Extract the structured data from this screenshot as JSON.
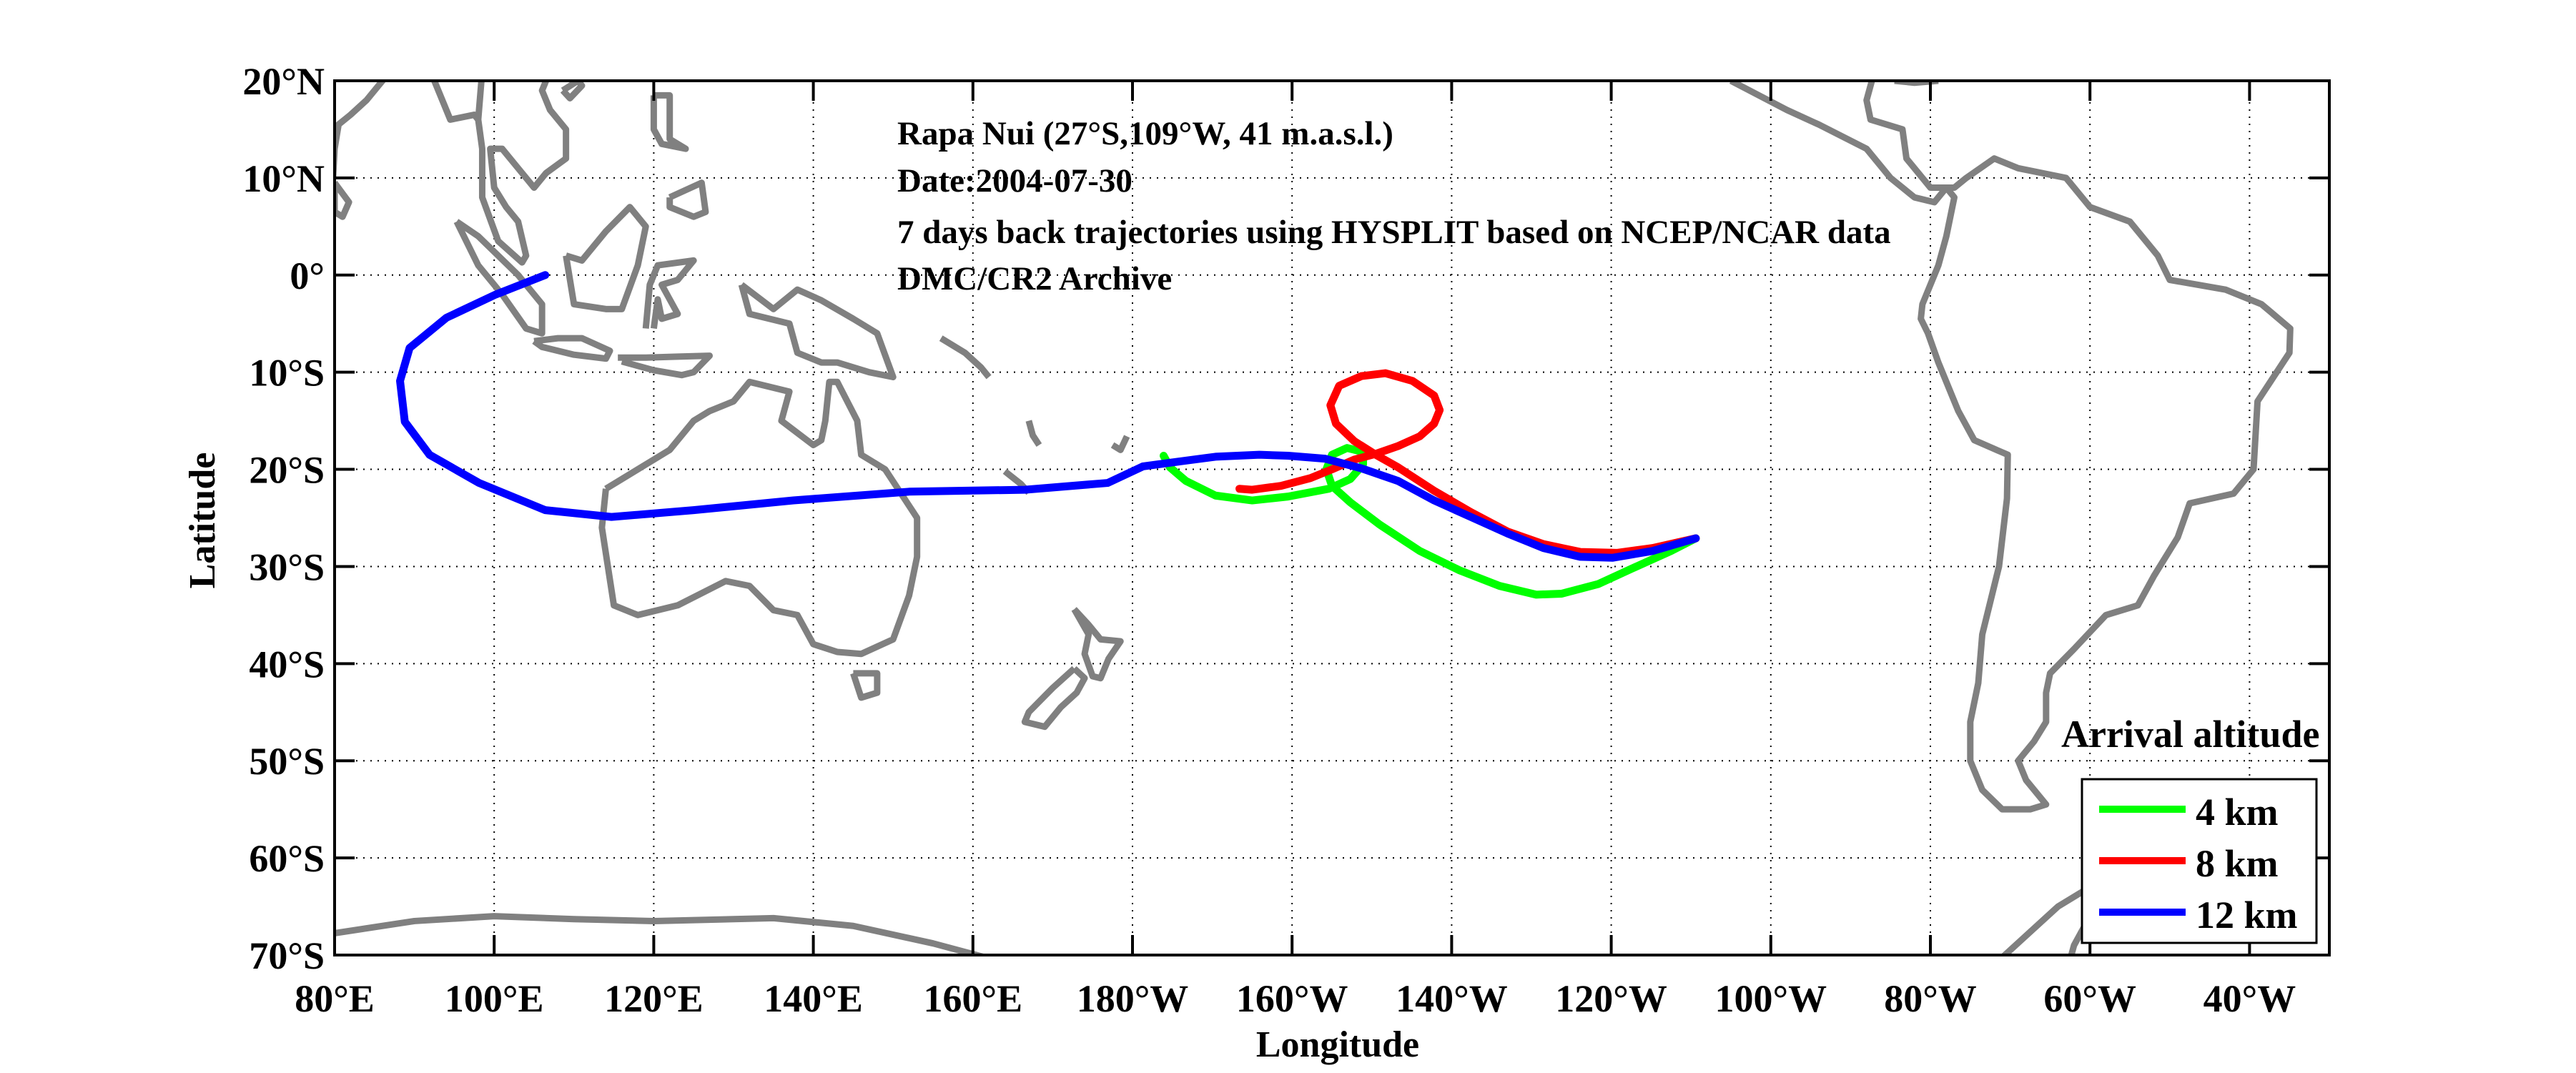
{
  "chart_data": {
    "type": "line",
    "subtype": "trajectory-map",
    "title_lines": [
      "Rapa Nui (27°S,109°W, 41 m.a.s.l.)",
      "Date:2004-07-30",
      "7 days back trajectories using HYSPLIT based on NCEP/NCAR data",
      "DMC/CR2 Archive"
    ],
    "xlabel": "Longitude",
    "ylabel": "Latitude",
    "xlim": [
      80,
      330
    ],
    "ylim": [
      -70,
      20
    ],
    "grid": true,
    "x_ticks": [
      80,
      100,
      120,
      140,
      160,
      180,
      200,
      220,
      240,
      260,
      280,
      300,
      320
    ],
    "x_tick_labels": [
      "80°E",
      "100°E",
      "120°E",
      "140°E",
      "160°E",
      "180°W",
      "160°W",
      "140°W",
      "120°W",
      "100°W",
      "80°W",
      "60°W",
      "40°W"
    ],
    "y_ticks": [
      20,
      10,
      0,
      -10,
      -20,
      -30,
      -40,
      -50,
      -60,
      -70
    ],
    "y_tick_labels": [
      "20°N",
      "10°N",
      "0°",
      "10°S",
      "20°S",
      "30°S",
      "40°S",
      "50°S",
      "60°S",
      "70°S"
    ],
    "legend": {
      "title": "Arrival altitude",
      "placement": "bottom-right",
      "entries": [
        "4 km",
        "8 km",
        "12 km"
      ]
    },
    "series": [
      {
        "name": "4 km",
        "color": "#00ff00",
        "lon": [
          250.6,
          247.5,
          242.9,
          238.4,
          233.8,
          230.6,
          226,
          221,
          216,
          211,
          207.3,
          205,
          204.3,
          205,
          206.9,
          208.9,
          208.9,
          207.3,
          204.6,
          199.5,
          195,
          190.4,
          186.7,
          184.7,
          183.9
        ],
        "lat": [
          -27.1,
          -28.4,
          -30.1,
          -31.8,
          -32.8,
          -32.9,
          -32,
          -30.4,
          -28.4,
          -25.7,
          -23.4,
          -21.7,
          -20,
          -18.5,
          -17.8,
          -18.2,
          -19.5,
          -21,
          -22,
          -22.8,
          -23.2,
          -22.7,
          -21.2,
          -19.8,
          -18.6
        ]
      },
      {
        "name": "8 km",
        "color": "#ff0000",
        "lon": [
          250.6,
          245.2,
          240.7,
          236.1,
          231.5,
          227,
          222.4,
          217.8,
          213.3,
          210.5,
          207.8,
          205.5,
          204.8,
          205.9,
          208.7,
          211.7,
          215.1,
          217.8,
          218.5,
          217.8,
          216,
          213.3,
          210.5,
          207.8,
          205,
          202.3,
          198.6,
          195,
          193.4
        ],
        "lat": [
          -27.1,
          -28.1,
          -28.6,
          -28.5,
          -27.7,
          -26.4,
          -24.4,
          -22.2,
          -19.8,
          -18.5,
          -17.1,
          -15.3,
          -13.4,
          -11.4,
          -10.4,
          -10.1,
          -10.9,
          -12.4,
          -13.9,
          -15.3,
          -16.6,
          -17.6,
          -18.4,
          -19,
          -20,
          -20.9,
          -21.7,
          -22.1,
          -22
        ]
      },
      {
        "name": "12 km",
        "color": "#0000ff",
        "lon": [
          250.6,
          245.2,
          240.2,
          236.1,
          231.5,
          227,
          222.4,
          217.8,
          213.3,
          208.7,
          204.1,
          199.5,
          195.9,
          190.4,
          185.8,
          181.3,
          176.9,
          166.5,
          152,
          137.5,
          125,
          114.7,
          106.4,
          98.1,
          91.9,
          88.8,
          88.2,
          89.4,
          94,
          100.2,
          106.4
        ],
        "lat": [
          -27.1,
          -28.4,
          -29.1,
          -29,
          -28.1,
          -26.6,
          -24.9,
          -23.2,
          -21.2,
          -19.9,
          -18.9,
          -18.6,
          -18.5,
          -18.7,
          -19.2,
          -19.7,
          -21.4,
          -22.1,
          -22.3,
          -23.2,
          -24.2,
          -24.9,
          -24.2,
          -21.4,
          -18.5,
          -15.1,
          -10.9,
          -7.5,
          -4.4,
          -2,
          0
        ]
      }
    ]
  }
}
